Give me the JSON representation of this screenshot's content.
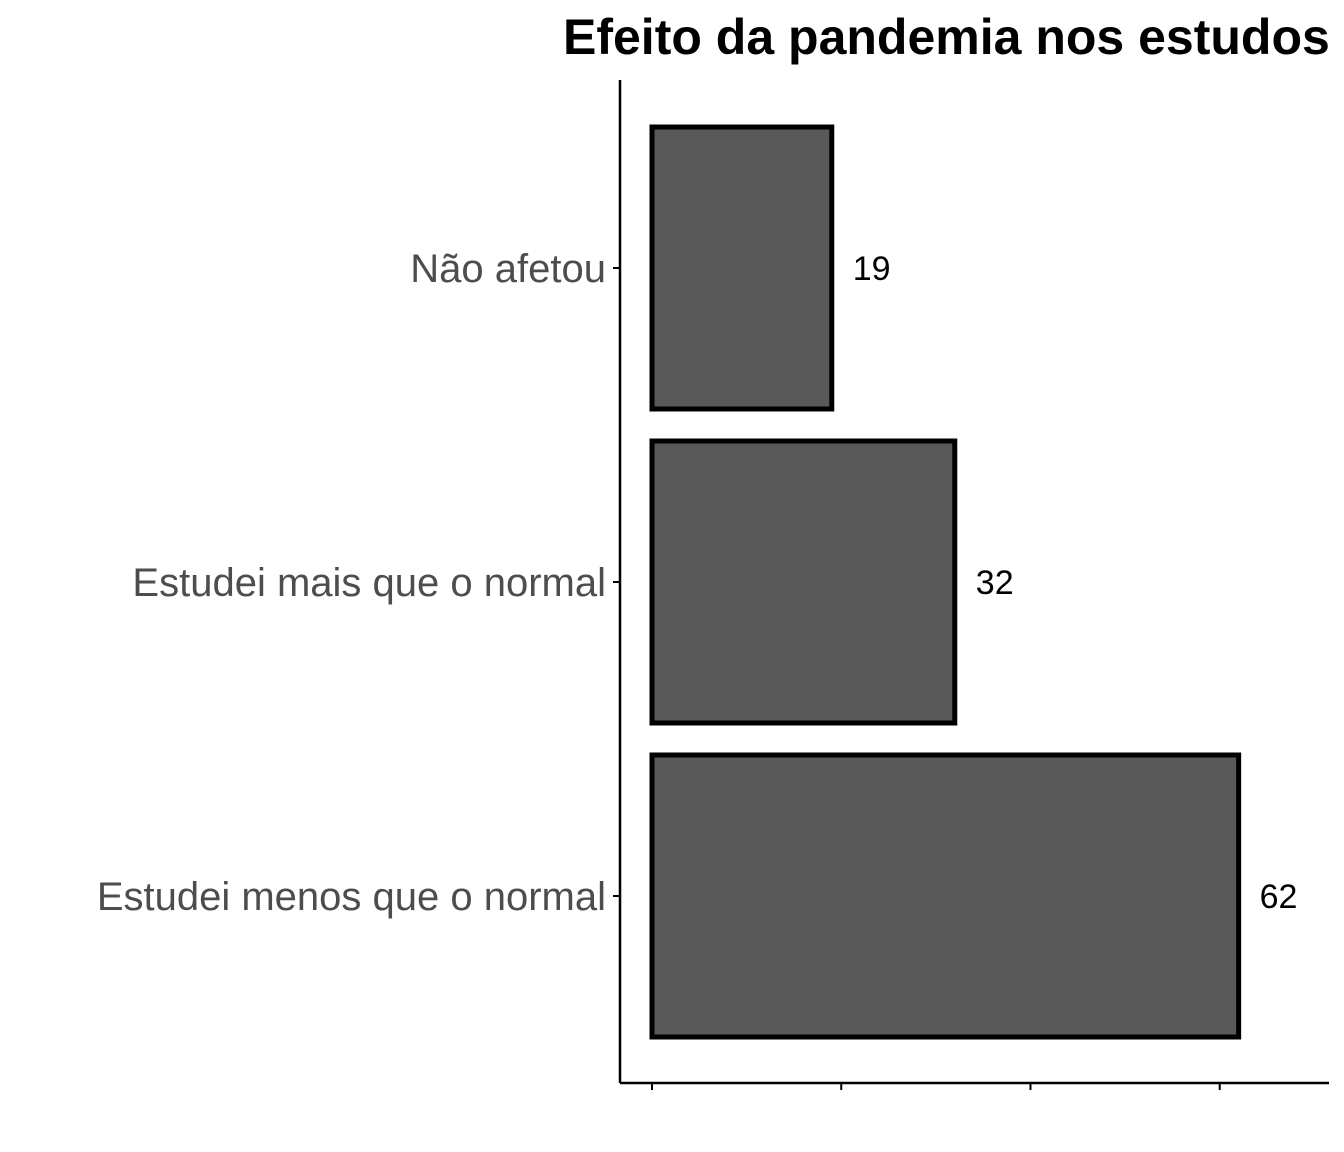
{
  "chart_data": {
    "type": "bar",
    "orientation": "horizontal",
    "title": "Efeito da pandemia nos estudos",
    "xlabel": "",
    "ylabel": "",
    "categories": [
      "Não afetou",
      "Estudei mais que o normal",
      "Estudei menos que o normal"
    ],
    "values": [
      19,
      32,
      62
    ],
    "data_labels": [
      "19",
      "32",
      "62"
    ],
    "xlim": [
      0,
      71
    ],
    "x_ticks": [
      0,
      20,
      40,
      60
    ],
    "x_tick_labels_shown": false,
    "grid": false,
    "legend": "none",
    "colors": {
      "bar_fill": "#595959",
      "bar_outline": "#000000",
      "axis": "#000000",
      "category_text": "#4d4d4d",
      "value_text": "#000000",
      "background": "#ffffff"
    }
  }
}
